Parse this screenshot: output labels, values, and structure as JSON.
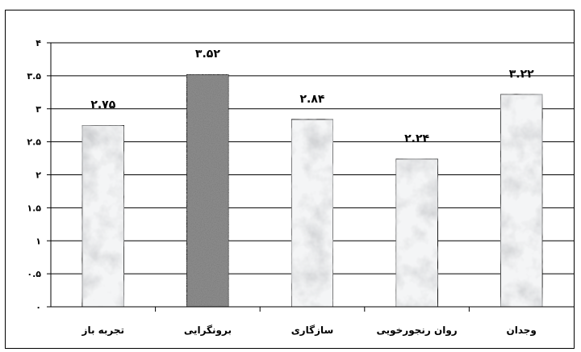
{
  "chart_data": {
    "type": "bar",
    "categories": [
      "تجربه باز",
      "برونگرایی",
      "سازگاری",
      "روان رنجورخویی",
      "وجدان"
    ],
    "values": [
      2.75,
      3.52,
      2.84,
      2.24,
      3.22
    ],
    "value_labels": [
      "۲.۷۵",
      "۳.۵۲",
      "۲.۸۴",
      "۲.۲۴",
      "۳.۲۲"
    ],
    "ylim": [
      0,
      4
    ],
    "y_ticks": [
      0,
      0.5,
      1,
      1.5,
      2,
      2.5,
      3,
      3.5,
      4
    ],
    "y_tick_labels": [
      "۰",
      "۰.۵",
      "۱",
      "۱.۵",
      "۲",
      "۲.۵",
      "۳",
      "۳.۵",
      "۴"
    ],
    "title": "",
    "xlabel": "",
    "ylabel": "",
    "grid": true,
    "legend": "none",
    "colors": {
      "bar_fill": "#f4f5f6",
      "highlight_fill": "#8a8a8a",
      "grid": "#000000",
      "axis": "#000000"
    },
    "highlight_index": 1
  }
}
